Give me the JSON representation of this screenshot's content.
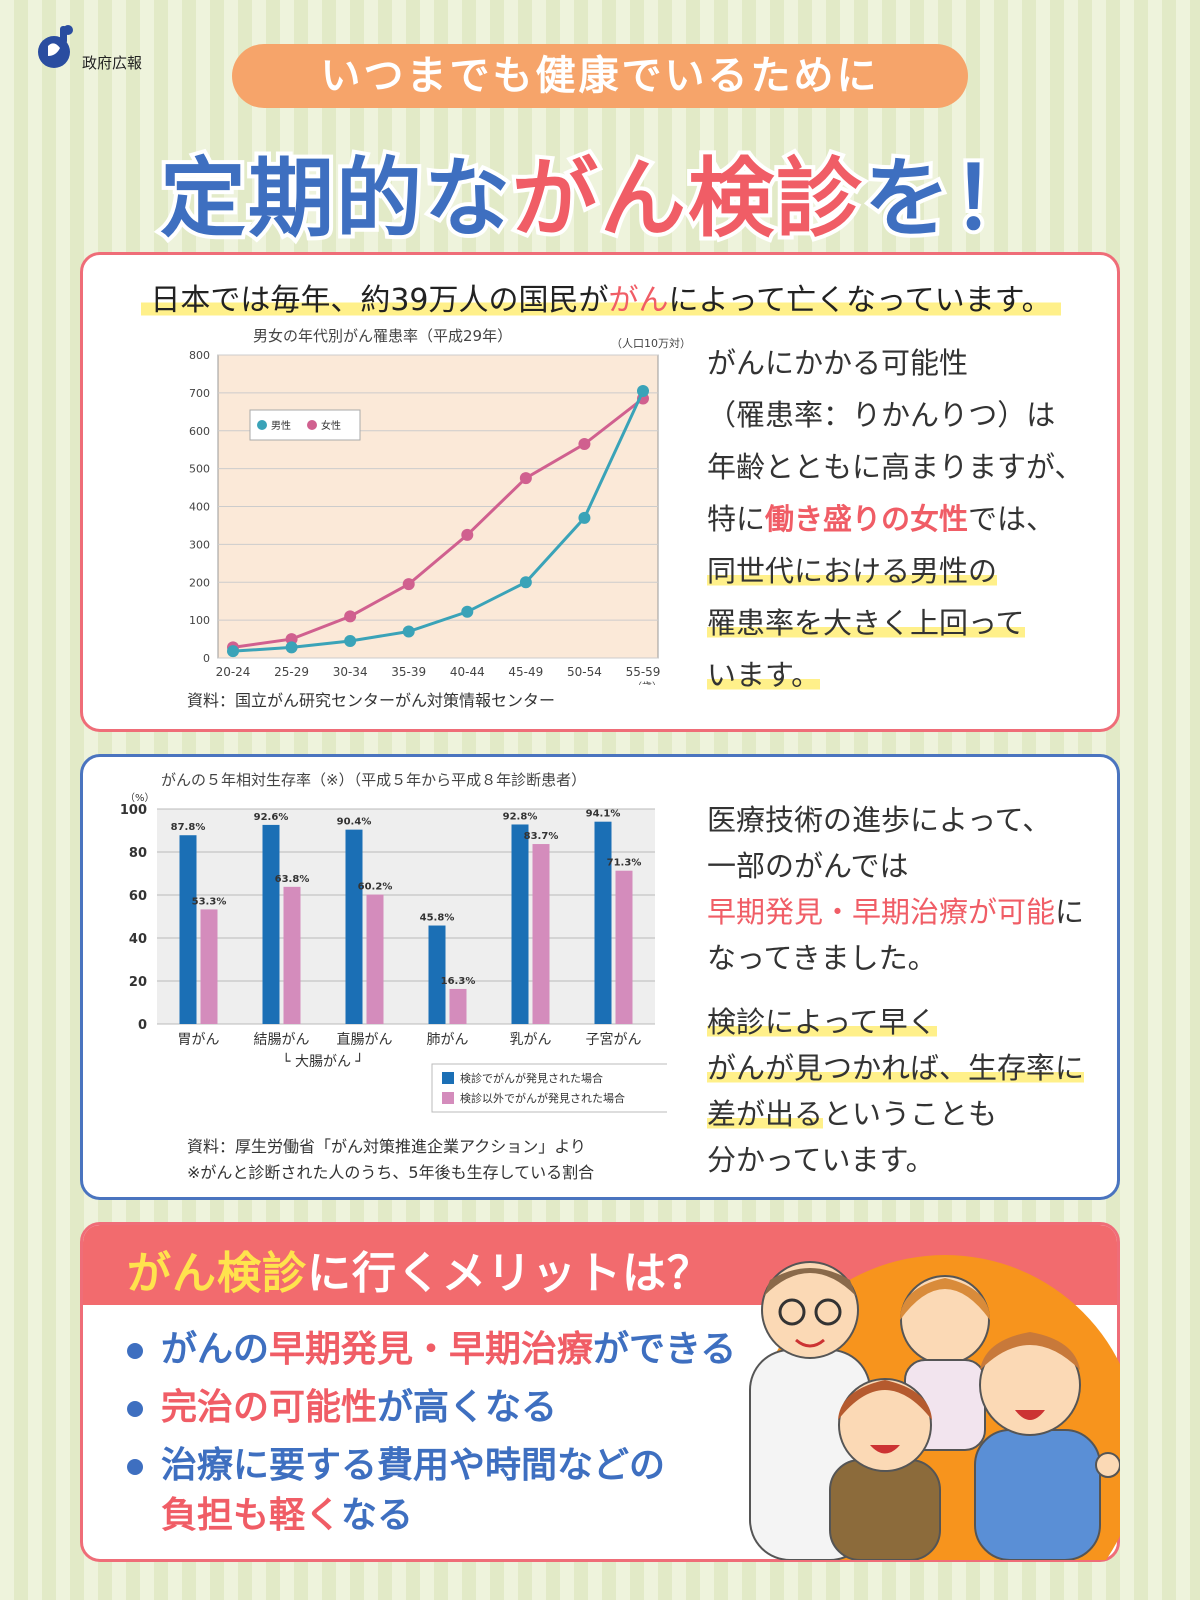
{
  "header": {
    "org_label": "政府広報",
    "pill": "いつまでも健康でいるために",
    "headline_part1": "定期的な",
    "headline_part2": "がん検診",
    "headline_part3": "を！"
  },
  "section1": {
    "lead_part1": "日本では毎年、約39万人の国民が",
    "lead_part2": "がん",
    "lead_part3": "によって亡くなっています。",
    "text": {
      "line1": "がんにかかる可能性",
      "line2": "（罹患率：りかんりつ）は",
      "line3": "年齢とともに高まりますが、",
      "line4a": "特に",
      "line4b": "働き盛りの女性",
      "line4c": "では、",
      "line5": "同世代における男性の",
      "line6": "罹患率を大きく上回って",
      "line7": "います。"
    },
    "chart_data": {
      "type": "line",
      "title": "男女の年代別がん罹患率（平成29年）",
      "unit": "（人口10万対）",
      "xunit": "（歳）",
      "categories": [
        "20-24",
        "25-29",
        "30-34",
        "35-39",
        "40-44",
        "45-49",
        "50-54",
        "55-59"
      ],
      "ylim": [
        0,
        800
      ],
      "yticks": [
        "0",
        "100",
        "200",
        "300",
        "400",
        "500",
        "600",
        "700",
        "800"
      ],
      "series": [
        {
          "name": "男性",
          "color": "#3aa3b8",
          "values": [
            18,
            28,
            45,
            70,
            122,
            200,
            370,
            705
          ]
        },
        {
          "name": "女性",
          "color": "#d0608f",
          "values": [
            28,
            50,
            110,
            195,
            325,
            475,
            565,
            685
          ]
        }
      ],
      "legend": "top-left",
      "grid": true,
      "background": "#fbe9d8",
      "source": "資料：国立がん研究センターがん対策情報センター"
    }
  },
  "section2": {
    "text": {
      "line1": "医療技術の進歩によって、",
      "line2": "一部のがんでは",
      "line3a": "早期発見・早期治療が可能",
      "line3b": "に",
      "line4": "なってきました。",
      "line5": "検診によって早く",
      "line6": "がんが見つかれば、生存率に",
      "line7a": "差が出る",
      "line7b": "ということも",
      "line8": "分かっています。"
    },
    "chart_data": {
      "type": "bar",
      "title": "がんの５年相対生存率（※）（平成５年から平成８年診断患者）",
      "ylabel": "（%）",
      "ylim": [
        0,
        100
      ],
      "yticks": [
        "0",
        "20",
        "40",
        "60",
        "80",
        "100"
      ],
      "categories": [
        "胃がん",
        "結腸がん",
        "直腸がん",
        "肺がん",
        "乳がん",
        "子宮がん"
      ],
      "group_label": "└ 大腸がん ┘",
      "series": [
        {
          "name": "検診でがんが発見された場合",
          "color": "#1b6fb5",
          "values": [
            87.8,
            92.6,
            90.4,
            45.8,
            92.8,
            94.1
          ]
        },
        {
          "name": "検診以外でがんが発見された場合",
          "color": "#d48cbc",
          "values": [
            53.3,
            63.8,
            60.2,
            16.3,
            83.7,
            71.3
          ]
        }
      ],
      "value_labels": [
        [
          "87.8%",
          "92.6%",
          "90.4%",
          "45.8%",
          "92.8%",
          "94.1%"
        ],
        [
          "53.3%",
          "63.8%",
          "60.2%",
          "16.3%",
          "83.7%",
          "71.3%"
        ]
      ],
      "legend": "bottom-right",
      "grid": true,
      "source": "資料：厚生労働省「がん対策推進企業アクション」より",
      "note": "※がんと診断された人のうち、5年後も生存している割合"
    }
  },
  "section3": {
    "title_part1": "がん検診",
    "title_part2": "に行くメリットは？",
    "items": [
      {
        "a": "がんの",
        "b": "早期発見・早期治療",
        "c": "ができる"
      },
      {
        "a": "",
        "b": "完治の可能性",
        "c": "が高くなる"
      },
      {
        "a": "治療に要する費用や時間などの",
        "b": "",
        "c": ""
      }
    ],
    "item3_line2_red": "負担も軽く",
    "item3_line2_blue": "なる"
  }
}
